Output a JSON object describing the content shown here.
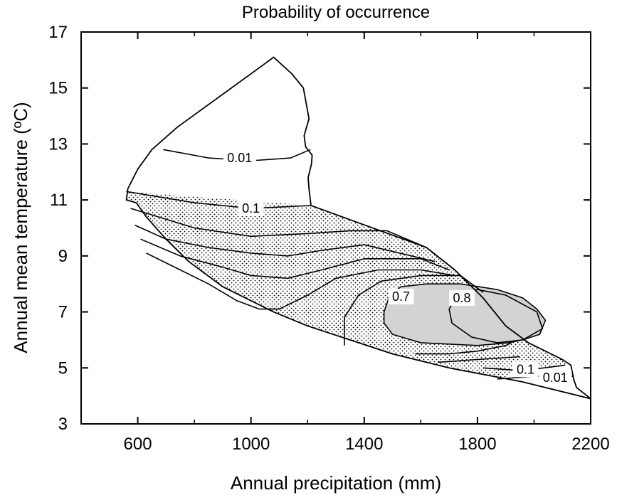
{
  "chart_data": {
    "type": "contour",
    "title": "Probability of occurrence",
    "xlabel": "Annual precipitation (mm)",
    "ylabel": "Annual mean temperature (ºC)",
    "xlim": [
      400,
      2200
    ],
    "ylim": [
      3,
      17
    ],
    "xticks": [
      600,
      1000,
      1400,
      1800,
      2200
    ],
    "xtick_labels": [
      "600",
      "1000",
      "1400",
      "1800",
      "2200"
    ],
    "yticks": [
      3,
      5,
      7,
      9,
      11,
      13,
      15,
      17
    ],
    "ytick_labels": [
      "3",
      "5",
      "7",
      "9",
      "11",
      "13",
      "15",
      "17"
    ],
    "grid": false,
    "fill_colors": {
      "shaded": "#d3d3d3",
      "stipple": "#000000"
    },
    "regions": {
      "outer": [
        [
          1080,
          16.1
        ],
        [
          1145,
          15.5
        ],
        [
          1185,
          15.0
        ],
        [
          1205,
          13.9
        ],
        [
          1188,
          13.3
        ],
        [
          1193,
          12.9
        ],
        [
          1216,
          12.6
        ],
        [
          1214,
          12.3
        ],
        [
          1202,
          11.8
        ],
        [
          1205,
          11.4
        ],
        [
          1212,
          10.8
        ],
        [
          1620,
          9.3
        ],
        [
          1720,
          8.5
        ],
        [
          1820,
          7.5
        ],
        [
          1900,
          6.5
        ],
        [
          1980,
          5.9
        ],
        [
          2100,
          5.3
        ],
        [
          2130,
          5.1
        ],
        [
          2140,
          4.6
        ],
        [
          2150,
          4.3
        ],
        [
          2200,
          3.9
        ],
        [
          1960,
          4.5
        ],
        [
          1700,
          5.0
        ],
        [
          1500,
          5.5
        ],
        [
          1200,
          6.5
        ],
        [
          1080,
          7.0
        ],
        [
          900,
          7.9
        ],
        [
          780,
          8.8
        ],
        [
          700,
          9.6
        ],
        [
          630,
          10.4
        ],
        [
          595,
          10.9
        ],
        [
          560,
          11.0
        ],
        [
          565,
          11.4
        ],
        [
          600,
          12.1
        ],
        [
          650,
          12.8
        ],
        [
          740,
          13.6
        ],
        [
          1040,
          15.8
        ],
        [
          1080,
          16.1
        ]
      ],
      "stippled": [
        [
          560,
          11.3
        ],
        [
          1212,
          10.8
        ],
        [
          1620,
          9.3
        ],
        [
          1720,
          8.5
        ],
        [
          1820,
          7.5
        ],
        [
          1900,
          6.5
        ],
        [
          1980,
          5.9
        ],
        [
          2100,
          5.3
        ],
        [
          2130,
          5.1
        ],
        [
          1960,
          4.5
        ],
        [
          1700,
          5.0
        ],
        [
          1500,
          5.5
        ],
        [
          1200,
          6.5
        ],
        [
          1080,
          7.0
        ],
        [
          900,
          7.9
        ],
        [
          780,
          8.8
        ],
        [
          700,
          9.6
        ],
        [
          630,
          10.4
        ],
        [
          595,
          10.9
        ],
        [
          560,
          11.0
        ],
        [
          560,
          11.3
        ]
      ],
      "shaded": [
        [
          1470,
          7.0
        ],
        [
          1490,
          7.6
        ],
        [
          1530,
          7.9
        ],
        [
          1620,
          8.0
        ],
        [
          1740,
          8.0
        ],
        [
          1870,
          7.8
        ],
        [
          1960,
          7.5
        ],
        [
          2010,
          7.1
        ],
        [
          2040,
          6.7
        ],
        [
          2020,
          6.2
        ],
        [
          1960,
          6.0
        ],
        [
          1910,
          5.9
        ],
        [
          1800,
          5.8
        ],
        [
          1600,
          5.9
        ],
        [
          1500,
          6.2
        ],
        [
          1470,
          6.6
        ],
        [
          1470,
          7.0
        ]
      ],
      "white_patch": [
        [
          1910,
          4.8
        ],
        [
          1990,
          5.0
        ],
        [
          2060,
          5.0
        ],
        [
          2120,
          5.1
        ],
        [
          2140,
          4.6
        ],
        [
          2140,
          4.3
        ],
        [
          2000,
          4.4
        ],
        [
          1910,
          4.6
        ],
        [
          1910,
          4.8
        ]
      ]
    },
    "contours": [
      {
        "level": 0.01,
        "points": [
          [
            690,
            12.8
          ],
          [
            850,
            12.5
          ],
          [
            1000,
            12.4
          ],
          [
            1140,
            12.5
          ],
          [
            1210,
            12.8
          ]
        ]
      },
      {
        "level": 0.1,
        "points": [
          [
            560,
            11.3
          ],
          [
            800,
            10.9
          ],
          [
            1000,
            10.7
          ],
          [
            1212,
            10.8
          ]
        ]
      },
      {
        "level": null,
        "points": [
          [
            575,
            10.7
          ],
          [
            800,
            10.0
          ],
          [
            1000,
            9.7
          ],
          [
            1200,
            9.8
          ],
          [
            1350,
            9.9
          ],
          [
            1480,
            9.9
          ],
          [
            1620,
            9.3
          ]
        ]
      },
      {
        "level": null,
        "points": [
          [
            590,
            10.1
          ],
          [
            700,
            9.6
          ],
          [
            850,
            9.3
          ],
          [
            1000,
            9.1
          ],
          [
            1130,
            9.0
          ],
          [
            1250,
            9.2
          ],
          [
            1400,
            9.4
          ],
          [
            1650,
            8.8
          ]
        ]
      },
      {
        "level": null,
        "points": [
          [
            610,
            9.6
          ],
          [
            750,
            9.0
          ],
          [
            900,
            8.6
          ],
          [
            1000,
            8.3
          ],
          [
            1130,
            8.2
          ],
          [
            1250,
            8.5
          ],
          [
            1400,
            8.9
          ],
          [
            1600,
            8.9
          ],
          [
            1700,
            8.5
          ]
        ]
      },
      {
        "level": null,
        "points": [
          [
            630,
            9.1
          ],
          [
            750,
            8.5
          ],
          [
            850,
            8.0
          ],
          [
            950,
            7.4
          ],
          [
            1030,
            7.1
          ],
          [
            1100,
            7.1
          ],
          [
            1200,
            7.6
          ],
          [
            1300,
            8.2
          ],
          [
            1450,
            8.5
          ],
          [
            1600,
            8.5
          ],
          [
            1720,
            8.3
          ]
        ]
      },
      {
        "level": 0.7,
        "points": [
          [
            1330,
            5.8
          ],
          [
            1330,
            6.8
          ],
          [
            1380,
            7.6
          ],
          [
            1460,
            8.1
          ],
          [
            1600,
            8.3
          ],
          [
            1740,
            8.3
          ],
          [
            1820,
            7.7
          ]
        ]
      },
      {
        "level": 0.8,
        "points": [
          [
            1700,
            7.1
          ],
          [
            1710,
            6.6
          ],
          [
            1780,
            6.1
          ],
          [
            1870,
            5.9
          ],
          [
            1960,
            6.0
          ],
          [
            2030,
            6.4
          ],
          [
            2010,
            7.0
          ],
          [
            1900,
            7.6
          ],
          [
            1800,
            7.8
          ],
          [
            1730,
            7.6
          ],
          [
            1700,
            7.1
          ]
        ]
      },
      {
        "level": null,
        "points": [
          [
            1580,
            5.5
          ],
          [
            1700,
            5.5
          ],
          [
            1800,
            5.6
          ],
          [
            1900,
            5.8
          ],
          [
            1920,
            5.9
          ]
        ]
      },
      {
        "level": null,
        "points": [
          [
            1660,
            5.2
          ],
          [
            1800,
            5.3
          ],
          [
            1950,
            5.4
          ]
        ]
      },
      {
        "level": 0.1,
        "points": [
          [
            1820,
            5.0
          ],
          [
            1960,
            4.9
          ],
          [
            2110,
            5.1
          ]
        ]
      },
      {
        "level": 0.01,
        "points": [
          [
            1870,
            4.6
          ],
          [
            2000,
            4.7
          ],
          [
            2140,
            4.7
          ]
        ]
      }
    ],
    "annotations": [
      {
        "text": "0.01",
        "x": 960,
        "y": 12.5
      },
      {
        "text": "0.1",
        "x": 1000,
        "y": 10.7
      },
      {
        "text": "0.7",
        "x": 1530,
        "y": 7.55
      },
      {
        "text": "0.8",
        "x": 1745,
        "y": 7.5
      },
      {
        "text": "0.1",
        "x": 1970,
        "y": 4.95
      },
      {
        "text": "0.01",
        "x": 2075,
        "y": 4.65
      }
    ]
  }
}
